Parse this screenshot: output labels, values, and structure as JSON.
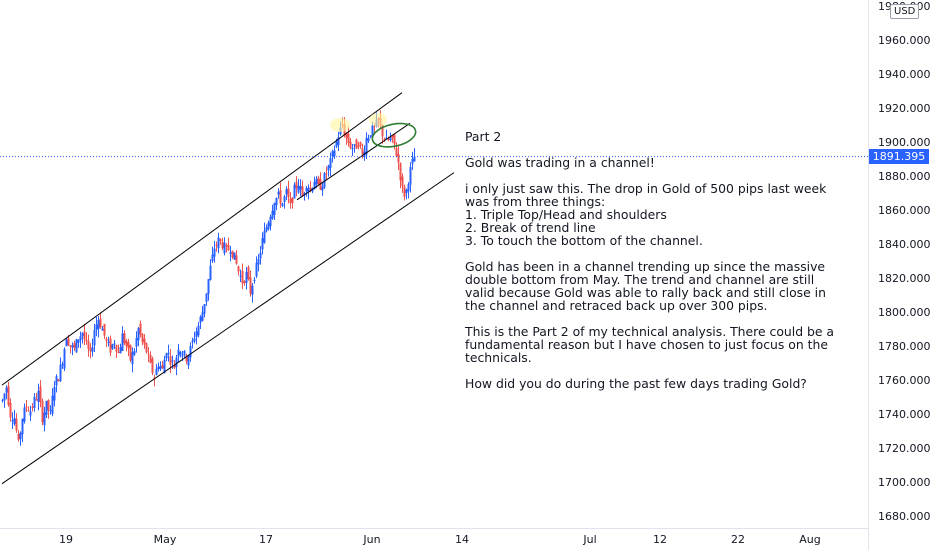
{
  "chart_data": {
    "type": "candlestick",
    "instrument_currency": "USD",
    "current_price": "1891.395",
    "ylim": [
      1670,
      1995
    ],
    "y_ticks": [
      "1980.000",
      "1960.000",
      "1940.000",
      "1920.000",
      "1900.000",
      "1880.000",
      "1860.000",
      "1840.000",
      "1820.000",
      "1800.000",
      "1780.000",
      "1760.000",
      "1740.000",
      "1720.000",
      "1700.000",
      "1680.000"
    ],
    "x_ticks": [
      "19",
      "May",
      "17",
      "Jun",
      "14",
      "Jul",
      "12",
      "22",
      "Aug"
    ],
    "colors": {
      "up": "#2962ff",
      "down": "#ef5350",
      "channel": "#000000",
      "price_line": "#2962ff",
      "highlight_yellow": "#fff59d",
      "highlight_green": "#2e7d32"
    },
    "anchors": [
      [
        0,
        1748
      ],
      [
        4,
        1756
      ],
      [
        8,
        1740
      ],
      [
        12,
        1738
      ],
      [
        16,
        1722
      ],
      [
        20,
        1738
      ],
      [
        24,
        1745
      ],
      [
        28,
        1742
      ],
      [
        32,
        1748
      ],
      [
        36,
        1752
      ],
      [
        40,
        1738
      ],
      [
        44,
        1745
      ],
      [
        48,
        1740
      ],
      [
        52,
        1758
      ],
      [
        56,
        1762
      ],
      [
        60,
        1772
      ],
      [
        64,
        1786
      ],
      [
        68,
        1780
      ],
      [
        72,
        1778
      ],
      [
        76,
        1785
      ],
      [
        80,
        1788
      ],
      [
        84,
        1780
      ],
      [
        88,
        1774
      ],
      [
        92,
        1790
      ],
      [
        96,
        1796
      ],
      [
        100,
        1790
      ],
      [
        104,
        1782
      ],
      [
        108,
        1778
      ],
      [
        112,
        1783
      ],
      [
        116,
        1776
      ],
      [
        120,
        1786
      ],
      [
        124,
        1780
      ],
      [
        128,
        1772
      ],
      [
        132,
        1778
      ],
      [
        136,
        1790
      ],
      [
        140,
        1782
      ],
      [
        144,
        1777
      ],
      [
        148,
        1768
      ],
      [
        152,
        1762
      ],
      [
        156,
        1770
      ],
      [
        160,
        1766
      ],
      [
        164,
        1778
      ],
      [
        168,
        1772
      ],
      [
        172,
        1768
      ],
      [
        176,
        1780
      ],
      [
        180,
        1776
      ],
      [
        184,
        1773
      ],
      [
        188,
        1778
      ],
      [
        192,
        1786
      ],
      [
        196,
        1792
      ],
      [
        200,
        1800
      ],
      [
        204,
        1812
      ],
      [
        208,
        1826
      ],
      [
        212,
        1838
      ],
      [
        216,
        1842
      ],
      [
        220,
        1840
      ],
      [
        224,
        1836
      ],
      [
        228,
        1838
      ],
      [
        232,
        1832
      ],
      [
        236,
        1824
      ],
      [
        240,
        1818
      ],
      [
        244,
        1822
      ],
      [
        248,
        1812
      ],
      [
        252,
        1822
      ],
      [
        256,
        1830
      ],
      [
        260,
        1842
      ],
      [
        264,
        1850
      ],
      [
        268,
        1858
      ],
      [
        272,
        1866
      ],
      [
        276,
        1868
      ],
      [
        280,
        1864
      ],
      [
        284,
        1870
      ],
      [
        288,
        1862
      ],
      [
        292,
        1872
      ],
      [
        296,
        1876
      ],
      [
        300,
        1868
      ],
      [
        304,
        1876
      ],
      [
        308,
        1872
      ],
      [
        312,
        1878
      ],
      [
        316,
        1873
      ],
      [
        320,
        1876
      ],
      [
        324,
        1882
      ],
      [
        328,
        1888
      ],
      [
        332,
        1896
      ],
      [
        336,
        1904
      ],
      [
        340,
        1910
      ],
      [
        344,
        1902
      ],
      [
        348,
        1898
      ],
      [
        352,
        1896
      ],
      [
        356,
        1900
      ],
      [
        360,
        1892
      ],
      [
        364,
        1902
      ],
      [
        368,
        1906
      ],
      [
        372,
        1908
      ],
      [
        376,
        1912
      ],
      [
        380,
        1905
      ],
      [
        384,
        1900
      ],
      [
        388,
        1902
      ],
      [
        392,
        1898
      ],
      [
        396,
        1888
      ],
      [
        400,
        1872
      ],
      [
        403,
        1868
      ],
      [
        406,
        1878
      ],
      [
        409,
        1886
      ],
      [
        412,
        1891.4
      ]
    ],
    "channel_lines": [
      [
        [
          0,
          1757
        ],
        [
          400,
          1929
        ]
      ],
      [
        [
          0,
          1699
        ],
        [
          452,
          1882
        ]
      ],
      [
        [
          295,
          1866
        ],
        [
          408,
          1911
        ]
      ]
    ],
    "price_line": 1891.395,
    "highlights": [
      {
        "kind": "ellipse",
        "color": "yellow",
        "cx": 338,
        "cy": 1910,
        "rx": 10,
        "ry": 7
      },
      {
        "kind": "ellipse",
        "color": "yellow",
        "cx": 376,
        "cy": 1913,
        "rx": 9,
        "ry": 7
      },
      {
        "kind": "ellipse",
        "color": "green",
        "cx": 392,
        "cy": 1904,
        "rx": 22,
        "ry": 11
      }
    ]
  },
  "annotation": {
    "paragraphs": [
      "Part 2",
      "Gold was trading in a channel!",
      "i only just saw this.  The drop in Gold of 500 pips last week was from three things:\n1. Triple Top/Head and shoulders\n2. Break of trend line\n3. To touch the bottom of the channel.",
      "Gold has been in a channel trending up since the massive double bottom from May.  The trend and channel are still valid because Gold was able to rally back and still close in the channel and retraced back up over 300 pips.",
      "This is the Part 2 of my technical analysis.  There could be a fundamental reason but I have chosen to just focus on the technicals.",
      "How did you do during the past few days trading Gold?"
    ]
  }
}
